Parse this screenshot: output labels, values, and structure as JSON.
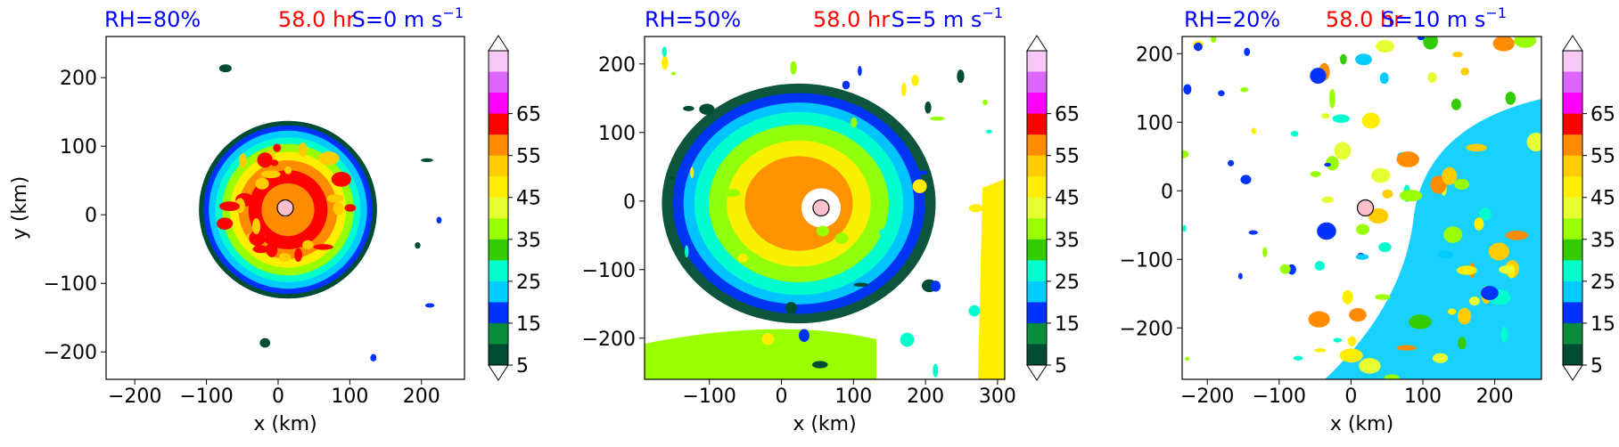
{
  "colors": {
    "blue_label": "#0000ff",
    "red_label": "#ff0000",
    "center_marker": "#ffc0cb",
    "levels": [
      "#004d33",
      "#0a8c3f",
      "#0033ff",
      "#00ccff",
      "#00ffcc",
      "#33cc00",
      "#99ff00",
      "#e5ff33",
      "#ffee00",
      "#ffcc00",
      "#ff8c00",
      "#ff0000",
      "#ff00ff",
      "#dd66ff",
      "#f5c8f5"
    ]
  },
  "chart_data": [
    {
      "type": "heatmap",
      "title_left": "RH=80%",
      "title_center": "58.0 hr",
      "title_right": "S=0 m s",
      "title_right_sup": "−1",
      "xlabel": "x (km)",
      "ylabel": "y (km)",
      "xlim": [
        -240,
        260
      ],
      "ylim": [
        -240,
        260
      ],
      "xticks": [
        -200,
        -100,
        0,
        100,
        200
      ],
      "yticks": [
        -200,
        -100,
        0,
        100,
        200
      ],
      "center": [
        10,
        10
      ],
      "colorbar_ticks": [
        "5",
        "15",
        "25",
        "35",
        "45",
        "55",
        "65"
      ]
    },
    {
      "type": "heatmap",
      "title_left": "RH=50%",
      "title_center": "58.0 hr",
      "title_right": "S=5 m s",
      "title_right_sup": "−1",
      "xlabel": "x (km)",
      "ylabel": "",
      "xlim": [
        -190,
        310
      ],
      "ylim": [
        -260,
        240
      ],
      "xticks": [
        -100,
        0,
        100,
        200,
        300
      ],
      "yticks": [
        -200,
        -100,
        0,
        100,
        200
      ],
      "center": [
        55,
        -10
      ],
      "colorbar_ticks": [
        "5",
        "15",
        "25",
        "35",
        "45",
        "55",
        "65"
      ]
    },
    {
      "type": "heatmap",
      "title_left": "RH=20%",
      "title_center": "58.0 hr",
      "title_right": "S=10 m s",
      "title_right_sup": "−1",
      "xlabel": "x (km)",
      "ylabel": "",
      "xlim": [
        -235,
        265
      ],
      "ylim": [
        -275,
        225
      ],
      "xticks": [
        -200,
        -100,
        0,
        100,
        200
      ],
      "yticks": [
        -200,
        -100,
        0,
        100,
        200
      ],
      "center": [
        20,
        -25
      ],
      "colorbar_ticks": [
        "5",
        "15",
        "25",
        "35",
        "45",
        "55",
        "65"
      ]
    }
  ]
}
